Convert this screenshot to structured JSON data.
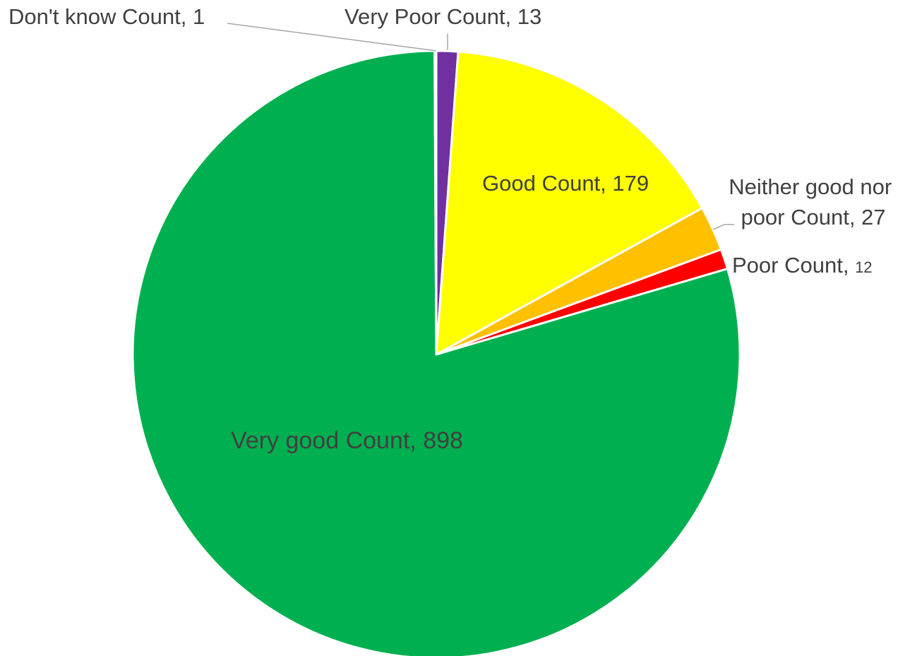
{
  "chart_data": {
    "type": "pie",
    "title": "",
    "slices": [
      {
        "category": "Very Poor Count",
        "value": 13,
        "color": "#7030a0"
      },
      {
        "category": "Good Count",
        "value": 179,
        "color": "#ffff00"
      },
      {
        "category": "Neither good nor poor Count",
        "value": 27,
        "color": "#ffc000"
      },
      {
        "category": "Poor Count",
        "value": 12,
        "color": "#ff0000"
      },
      {
        "category": "Very good Count",
        "value": 898,
        "color": "#00b050"
      },
      {
        "category": "Don't know Count",
        "value": 1,
        "color": "#ffffff"
      }
    ],
    "labels": {
      "very_poor": {
        "name": "Very Poor Count",
        "value_text": "13"
      },
      "good": {
        "name": "Good Count",
        "value_text": "179"
      },
      "neither_line1": "Neither good nor",
      "neither_line2": "poor Count, 27",
      "poor": {
        "name": "Poor Count",
        "value_text": "12"
      },
      "very_good": {
        "name": "Very good Count",
        "value_text": "898"
      },
      "dont_know": {
        "name": "Don't know Count",
        "value_text": "1"
      }
    },
    "legend": "none"
  }
}
